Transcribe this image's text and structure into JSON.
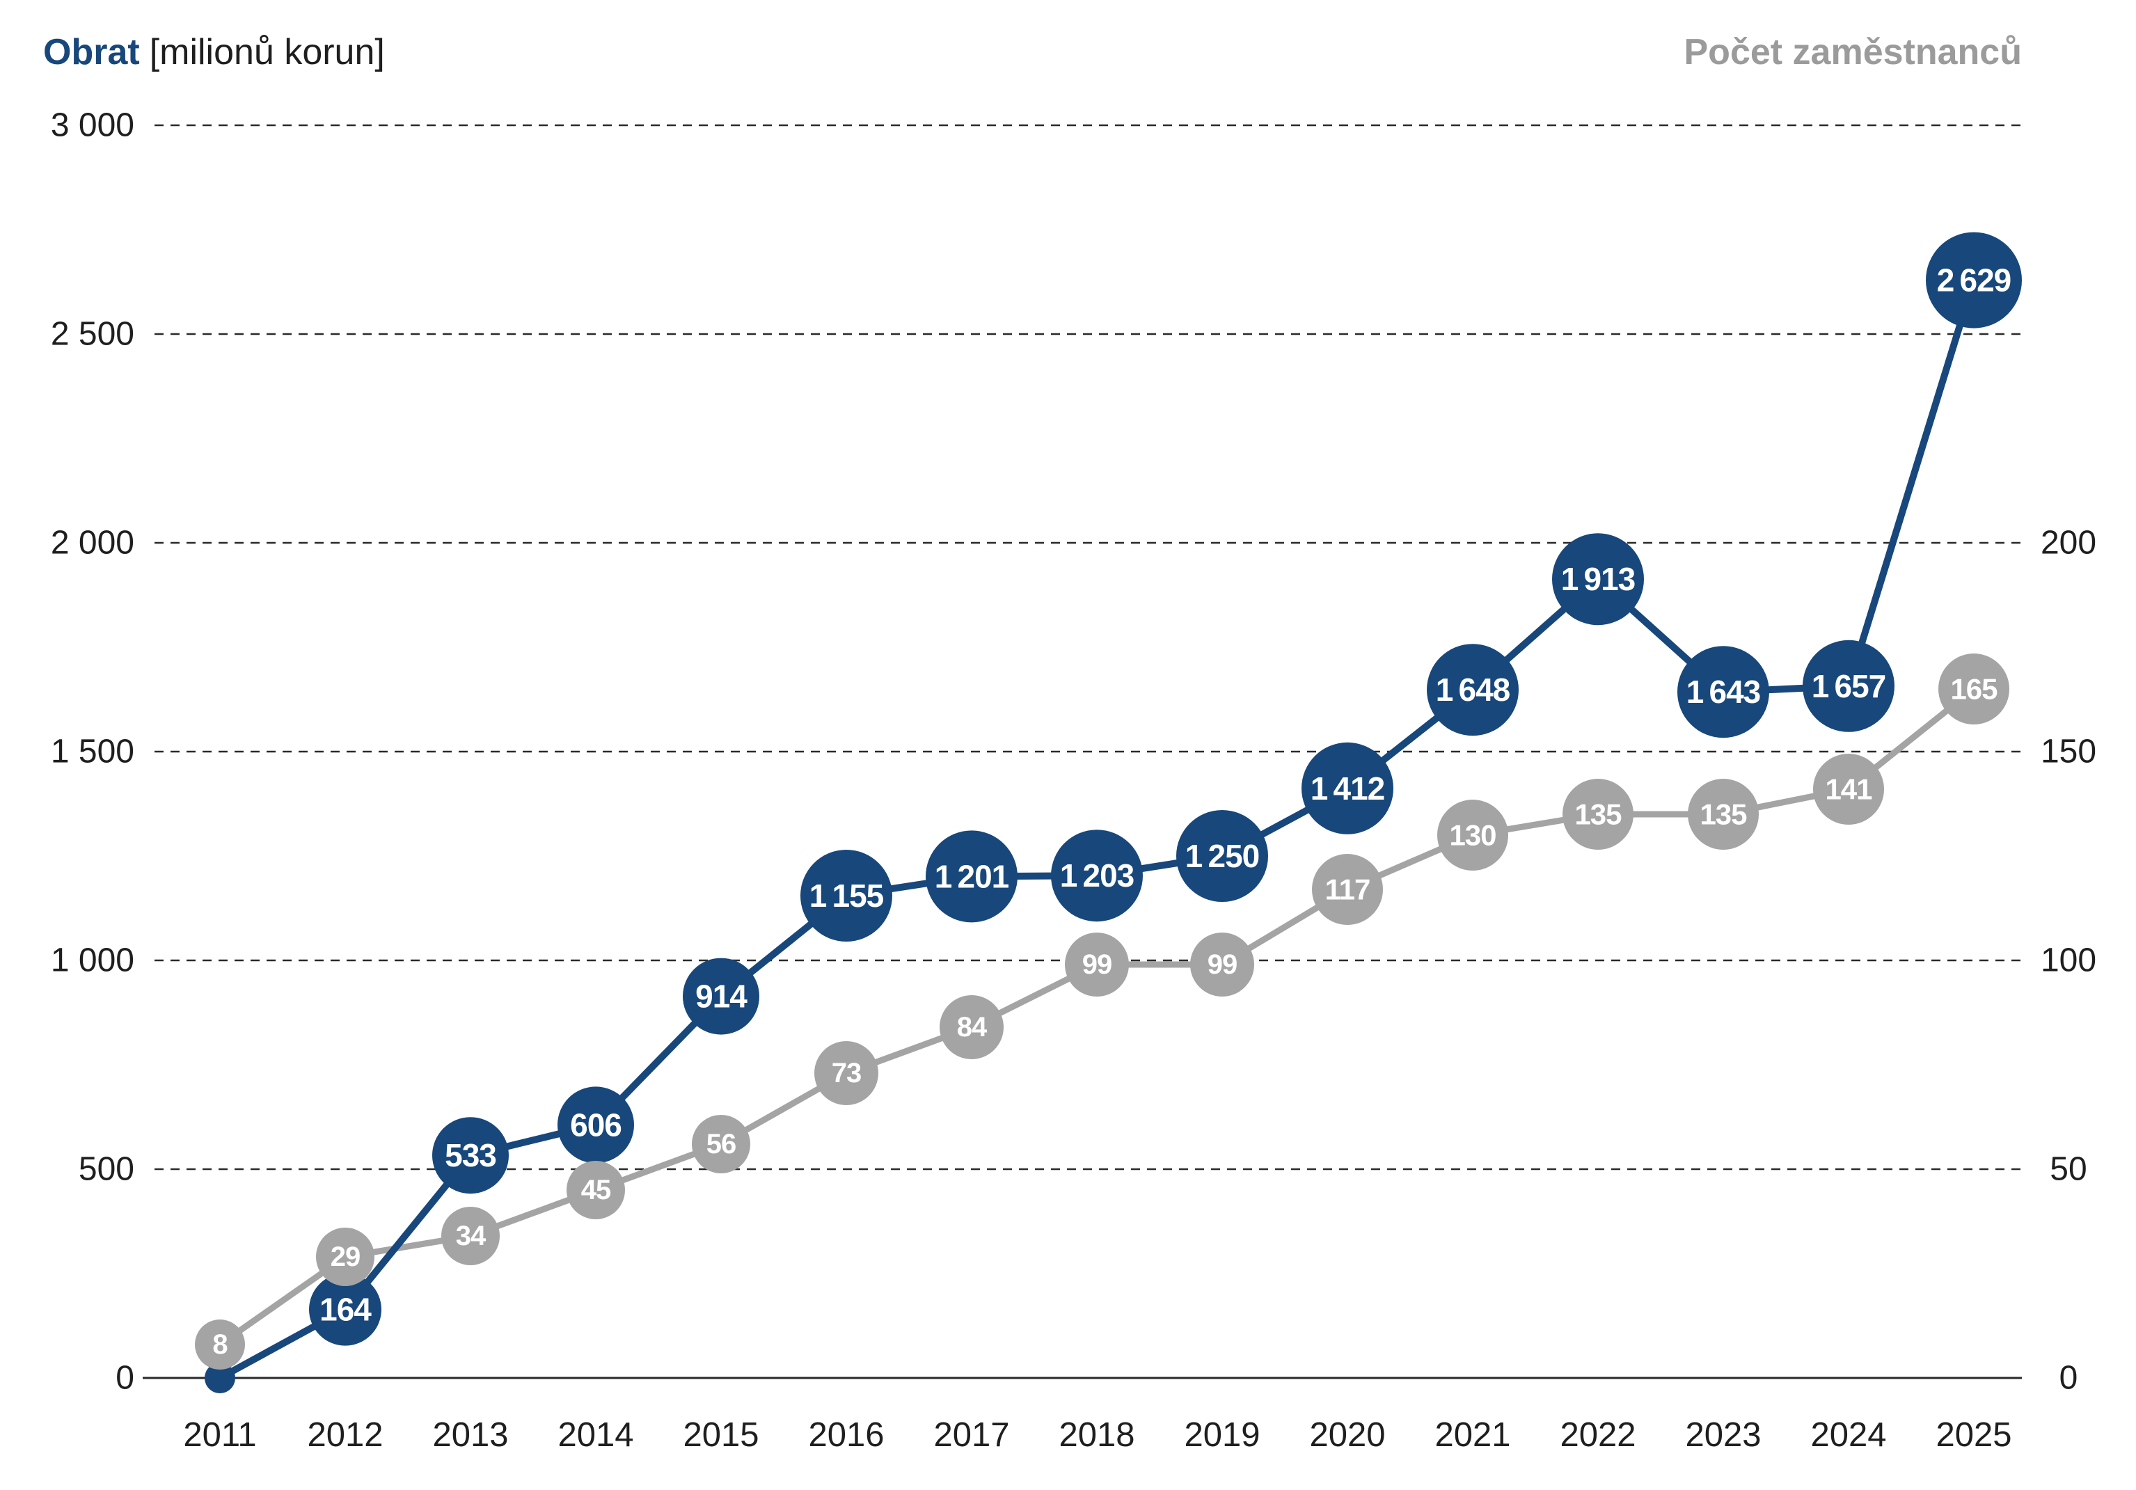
{
  "titles": {
    "left_main": "Obrat",
    "left_unit": "[milionů korun]",
    "right": "Počet zaměstnanců"
  },
  "colors": {
    "blue": "#17477B",
    "gray": "#A4A4A4",
    "title_gray": "#9B9B9B",
    "text": "#1E1E1E",
    "grid": "#2A2A2A",
    "background": "#FFFFFF"
  },
  "chart_data": {
    "type": "line",
    "x_categories": [
      "2011",
      "2012",
      "2013",
      "2014",
      "2015",
      "2016",
      "2017",
      "2018",
      "2019",
      "2020",
      "2021",
      "2022",
      "2023",
      "2024",
      "2025"
    ],
    "series": [
      {
        "name": "Obrat [milionů korun]",
        "axis": "left",
        "color": "#17477B",
        "values": [
          0,
          164,
          533,
          606,
          914,
          1155,
          1201,
          1203,
          1250,
          1412,
          1648,
          1913,
          1643,
          1657,
          2629
        ],
        "labels": [
          "",
          "164",
          "533",
          "606",
          "914",
          "1 155",
          "1 201",
          "1 203",
          "1 250",
          "1 412",
          "1 648",
          "1 913",
          "1 643",
          "1 657",
          "2 629"
        ]
      },
      {
        "name": "Počet zaměstnanců",
        "axis": "right",
        "color": "#A4A4A4",
        "values": [
          8,
          29,
          34,
          45,
          56,
          73,
          84,
          99,
          99,
          117,
          130,
          135,
          135,
          141,
          165
        ],
        "labels": [
          "8",
          "29",
          "34",
          "45",
          "56",
          "73",
          "84",
          "99",
          "99",
          "117",
          "130",
          "135",
          "135",
          "141",
          "165"
        ]
      }
    ],
    "left_axis": {
      "min": 0,
      "max": 3000,
      "tick_step": 500,
      "tick_labels": [
        "0",
        "500",
        "1 000",
        "1 500",
        "2 000",
        "2 500",
        "3 000"
      ]
    },
    "right_axis": {
      "min": 0,
      "max": 200,
      "tick_step": 50,
      "tick_labels": [
        "0",
        "50",
        "100",
        "150",
        "200"
      ]
    },
    "grid": "horizontal dashed gridlines, solid zero axis",
    "legend_position": "axis titles: blue top-left, gray top-right"
  }
}
